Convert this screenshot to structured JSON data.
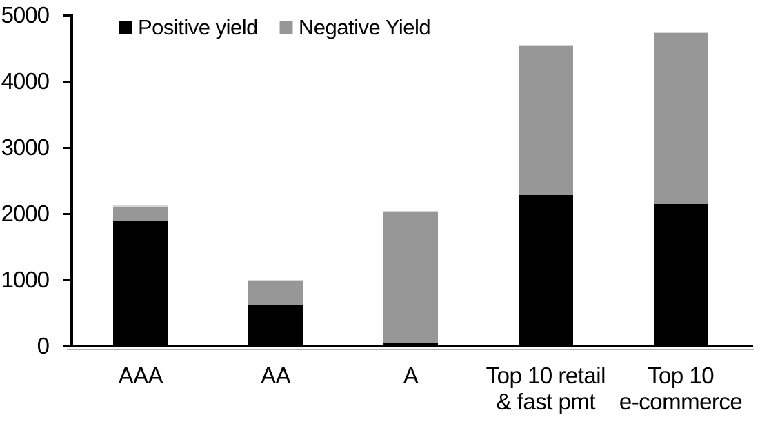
{
  "chart_data": {
    "type": "bar",
    "stacked": true,
    "title": "",
    "xlabel": "",
    "ylabel": "",
    "categories": [
      "AAA",
      "AA",
      "A",
      "Top 10 retail\n& fast pmt",
      "Top 10\ne-commerce"
    ],
    "series": [
      {
        "name": "Positive yield",
        "color": "#000000",
        "values": [
          1900,
          625,
          50,
          2280,
          2150
        ]
      },
      {
        "name": "Negative Yield",
        "color": "#979797",
        "values": [
          230,
          375,
          1990,
          2270,
          2600
        ]
      }
    ],
    "stack_totals": [
      2130,
      1000,
      2040,
      4550,
      4750
    ],
    "ylim": [
      0,
      5000
    ],
    "yticks": [
      0,
      1000,
      2000,
      3000,
      4000,
      5000
    ],
    "grid": false,
    "legend_position": "top-left"
  },
  "colors": {
    "axis": "#000000",
    "axis_shadow": "#b3b3b3",
    "background": "#ffffff",
    "text": "#000000"
  }
}
